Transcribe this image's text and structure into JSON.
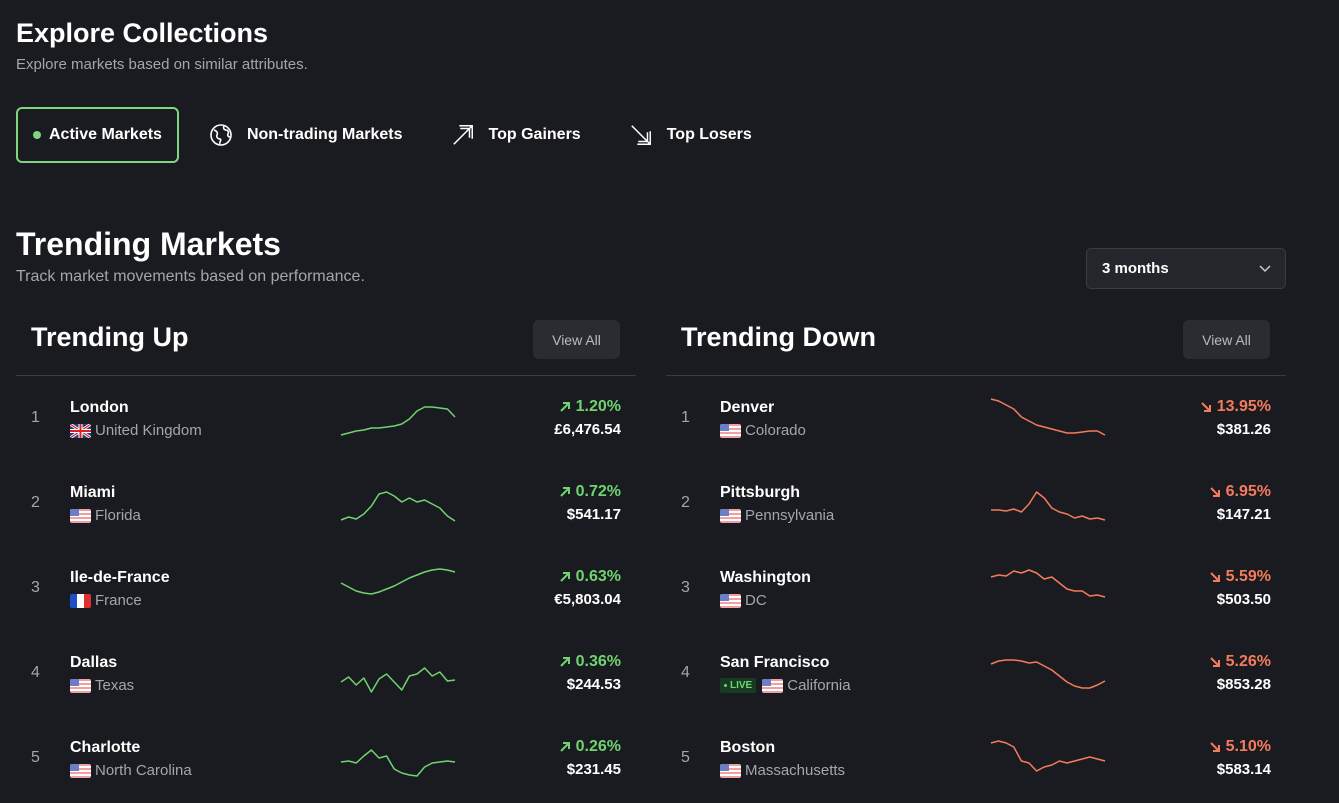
{
  "header": {
    "title": "Explore Collections",
    "subtitle": "Explore markets based on similar attributes."
  },
  "tabs": [
    {
      "label": "Active Markets",
      "icon": "green-dot-icon"
    },
    {
      "label": "Non-trading Markets",
      "icon": "globe-icon"
    },
    {
      "label": "Top Gainers",
      "icon": "arrow-up-right-icon"
    },
    {
      "label": "Top Losers",
      "icon": "arrow-down-right-icon"
    }
  ],
  "trending": {
    "title": "Trending Markets",
    "subtitle": "Track market movements based on performance.",
    "period": "3 months"
  },
  "colors": {
    "up": "#6fd46f",
    "down": "#f47b5c",
    "accent": "#7fd67f"
  },
  "up": {
    "title": "Trending Up",
    "view_all": "View All",
    "rows": [
      {
        "rank": "1",
        "name": "London",
        "region": "United Kingdom",
        "flag": "uk",
        "change": "1.20%",
        "price": "£6,476.54"
      },
      {
        "rank": "2",
        "name": "Miami",
        "region": "Florida",
        "flag": "us",
        "change": "0.72%",
        "price": "$541.17"
      },
      {
        "rank": "3",
        "name": "Ile-de-France",
        "region": "France",
        "flag": "fr",
        "change": "0.63%",
        "price": "€5,803.04"
      },
      {
        "rank": "4",
        "name": "Dallas",
        "region": "Texas",
        "flag": "us",
        "change": "0.36%",
        "price": "$244.53"
      },
      {
        "rank": "5",
        "name": "Charlotte",
        "region": "North Carolina",
        "flag": "us",
        "change": "0.26%",
        "price": "$231.45"
      }
    ]
  },
  "down": {
    "title": "Trending Down",
    "view_all": "View All",
    "rows": [
      {
        "rank": "1",
        "name": "Denver",
        "region": "Colorado",
        "flag": "us",
        "change": "13.95%",
        "price": "$381.26"
      },
      {
        "rank": "2",
        "name": "Pittsburgh",
        "region": "Pennsylvania",
        "flag": "us",
        "change": "6.95%",
        "price": "$147.21"
      },
      {
        "rank": "3",
        "name": "Washington",
        "region": "DC",
        "flag": "us",
        "change": "5.59%",
        "price": "$503.50"
      },
      {
        "rank": "4",
        "name": "San Francisco",
        "region": "California",
        "flag": "us",
        "change": "5.26%",
        "price": "$853.28",
        "badge": "LIVE"
      },
      {
        "rank": "5",
        "name": "Boston",
        "region": "Massachusetts",
        "flag": "us",
        "change": "5.10%",
        "price": "$583.14"
      }
    ]
  }
}
